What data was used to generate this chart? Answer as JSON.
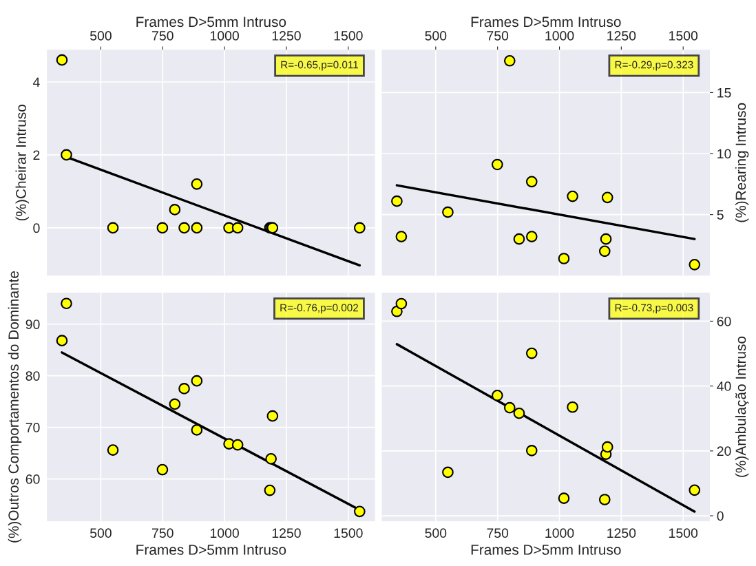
{
  "chart_data": [
    {
      "type": "scatter",
      "x2label": "Frames D>5mm Intruso",
      "ylabel": "(%)Cheirar Intruso",
      "xlim": [
        282,
        1608
      ],
      "x2lim": [
        282,
        1608
      ],
      "x2ticks": [
        500,
        750,
        1000,
        1250,
        1500
      ],
      "ylim": [
        -1.31,
        4.88
      ],
      "yticks": [
        0,
        2,
        4
      ],
      "grid": true,
      "tick_labels": "y",
      "x": [
        343,
        361,
        549,
        749,
        799,
        837,
        888,
        888,
        1018,
        1053,
        1183,
        1188,
        1194,
        1546
      ],
      "series": [
        {
          "marker": "circle",
          "color": "#ffff00",
          "values": [
            4.6,
            2.0,
            0,
            0,
            0.5,
            0,
            1.2,
            0,
            0,
            0,
            0,
            0,
            0,
            0
          ]
        },
        {
          "type": "line",
          "marker": "none",
          "color": "#000000",
          "x": [
            362,
            1546
          ],
          "values": [
            1.94,
            -1.03
          ]
        }
      ],
      "annotations": [
        "R=-0.65,p=0.011"
      ]
    },
    {
      "type": "scatter",
      "x2label": "Frames D>5mm Intruso",
      "y2label": "(%)Rearing Intruso",
      "xlim": [
        282,
        1608
      ],
      "x2lim": [
        282,
        1608
      ],
      "x2ticks": [
        500,
        750,
        1000,
        1250,
        1500
      ],
      "y2lim": [
        0,
        18.5
      ],
      "y2ticks": [
        5,
        10,
        15
      ],
      "grid": true,
      "tick_labels": "y",
      "x": [
        343,
        361,
        549,
        749,
        799,
        837,
        888,
        888,
        1018,
        1053,
        1183,
        1188,
        1194,
        1546
      ],
      "series": [
        {
          "marker": "circle",
          "axis": "y2",
          "color": "#ffff00",
          "values": [
            6.1,
            3.2,
            5.2,
            9.1,
            17.6,
            3.0,
            7.7,
            3.2,
            1.4,
            6.5,
            2.0,
            3.0,
            6.4,
            0.9
          ]
        },
        {
          "type": "line",
          "marker": "none",
          "axis": "y2",
          "color": "#000000",
          "x": [
            343,
            1546
          ],
          "values": [
            7.4,
            3.0
          ]
        }
      ],
      "annotations": [
        "R=-0.29,p=0.323"
      ]
    },
    {
      "type": "scatter",
      "xlabel": "Frames D>5mm Intruso",
      "ylabel": "(%)Outros Comportamentos do Dominante",
      "xlim": [
        282,
        1608
      ],
      "xticks": [
        500,
        750,
        1000,
        1250,
        1500
      ],
      "ylim": [
        51.8,
        96.1
      ],
      "yticks": [
        60,
        70,
        80,
        90
      ],
      "grid": true,
      "x": [
        343,
        361,
        549,
        749,
        799,
        837,
        888,
        888,
        1018,
        1053,
        1183,
        1188,
        1194,
        1546
      ],
      "series": [
        {
          "marker": "circle",
          "color": "#ffff00",
          "values": [
            86.8,
            94.0,
            65.6,
            61.8,
            74.5,
            77.5,
            79.0,
            69.5,
            66.8,
            66.6,
            57.8,
            63.9,
            72.2,
            53.7
          ]
        },
        {
          "type": "line",
          "marker": "none",
          "color": "#000000",
          "x": [
            343,
            1546
          ],
          "values": [
            84.5,
            54.0
          ]
        }
      ],
      "annotations": [
        "R=-0.76,p=0.002"
      ]
    },
    {
      "type": "scatter",
      "xlabel": "Frames D>5mm Intruso",
      "y2label": "(%)Ambulação Intruso",
      "xlim": [
        282,
        1608
      ],
      "xticks": [
        500,
        750,
        1000,
        1250,
        1500
      ],
      "y2lim": [
        -1.7,
        68.8
      ],
      "y2ticks": [
        0,
        20,
        40,
        60
      ],
      "grid": true,
      "x": [
        343,
        361,
        549,
        749,
        799,
        837,
        888,
        888,
        1018,
        1053,
        1183,
        1188,
        1194,
        1546
      ],
      "series": [
        {
          "marker": "circle",
          "axis": "y2",
          "color": "#ffff00",
          "values": [
            63.0,
            65.4,
            13.4,
            37.1,
            33.3,
            31.6,
            50.1,
            20.1,
            5.4,
            33.5,
            5.0,
            19.0,
            21.2,
            7.9
          ]
        },
        {
          "type": "line",
          "marker": "none",
          "axis": "y2",
          "color": "#000000",
          "x": [
            343,
            1546
          ],
          "values": [
            52.9,
            1.3
          ]
        }
      ],
      "annotations": [
        "R=-0.73,p=0.003"
      ]
    }
  ]
}
